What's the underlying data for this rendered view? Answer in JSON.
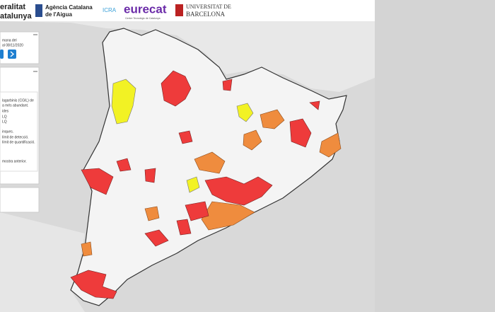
{
  "header": {
    "government": [
      "eralitat",
      "atalunya"
    ],
    "agency": [
      "Agència Catalana",
      "de l'Aigua"
    ],
    "icra": "ICRA",
    "eurecat": "eurecat",
    "eurecat_tagline": "Centre Tecnològic de Catalunya",
    "university": [
      "UNIVERSITAT DE",
      "BARCELONA"
    ]
  },
  "panel": {
    "week": [
      "mana del",
      "al 08/11/2020"
    ],
    "legend": [
      "lagarbinis (CGIL) de",
      "a més abundant.",
      "ides",
      "LQ",
      "LQ",
      "inques.",
      "límit de detecció.",
      "límit de quantificació.",
      "mostra anterior."
    ]
  }
}
